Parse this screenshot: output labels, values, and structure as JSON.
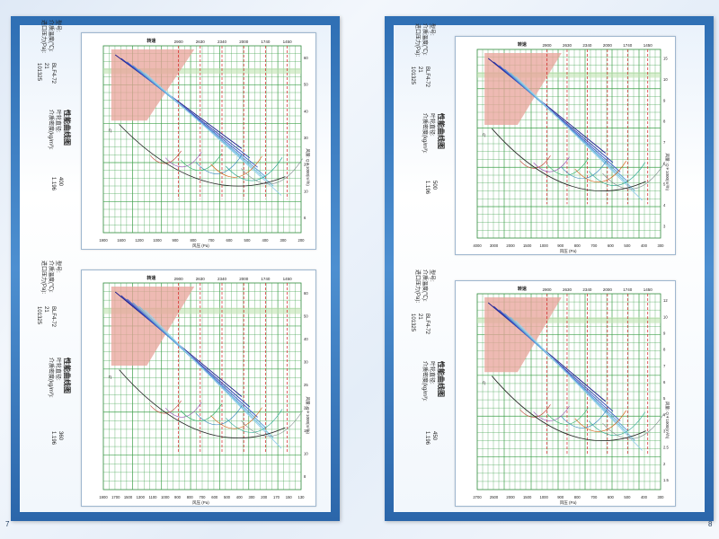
{
  "pages": [
    {
      "number": "7"
    },
    {
      "number": "8"
    }
  ],
  "labels": {
    "title": "性能曲线图",
    "model_label": "型号:",
    "impeller_label": "叶轮直径:",
    "temp_label": "介质温度(℃):",
    "density_label": "介质密度(kg/m³):",
    "pressure_label": "进口压力(Pa):",
    "speed_label": "转速",
    "speed_unit": "(r/min)",
    "y_axis_label": "风压",
    "y_axis_unit": "(Pa)",
    "x_axis_label": "风量: Q＊1000(m³/h)",
    "eta_label": "η"
  },
  "panels": [
    {
      "model": "BLF4-72",
      "impeller": "400",
      "temp": "21",
      "density": "1.196",
      "pressure": "101325",
      "speeds": [
        "2900",
        "2630",
        "2340",
        "2000",
        "1740",
        "1450"
      ],
      "pressure_ticks": [
        "1900",
        "1600",
        "1200",
        "1000",
        "900",
        "800",
        "700",
        "600",
        "500",
        "400",
        "300",
        "200"
      ],
      "flow_ticks": [
        "6",
        "10",
        "20",
        "30",
        "40",
        "50",
        "60"
      ]
    },
    {
      "model": "BLF4-72",
      "impeller": "360",
      "temp": "21",
      "density": "1.196",
      "pressure": "101325",
      "speeds": [
        "2900",
        "2630",
        "2340",
        "2000",
        "1740",
        "1450"
      ],
      "pressure_ticks": [
        "1900",
        "1700",
        "1500",
        "1300",
        "1100",
        "1000",
        "900",
        "800",
        "700",
        "600",
        "500",
        "400",
        "300",
        "200",
        "170",
        "150",
        "130"
      ],
      "flow_ticks": [
        "8",
        "10",
        "15",
        "20",
        "25",
        "30",
        "40",
        "50",
        "60"
      ]
    },
    {
      "model": "BLF4-72",
      "impeller": "500",
      "temp": "21",
      "density": "1.196",
      "pressure": "101325",
      "speeds": [
        "2900",
        "2630",
        "2340",
        "2000",
        "1740",
        "1450"
      ],
      "pressure_ticks": [
        "4000",
        "3000",
        "2000",
        "1500",
        "1000",
        "900",
        "800",
        "700",
        "600",
        "500",
        "400",
        "300"
      ],
      "flow_ticks": [
        "3",
        "4",
        "5",
        "6",
        "7",
        "8",
        "9",
        "10",
        "15"
      ]
    },
    {
      "model": "BLF4-72",
      "impeller": "450",
      "temp": "21",
      "density": "1.196",
      "pressure": "101325",
      "speeds": [
        "2900",
        "2630",
        "2340",
        "2000",
        "1740",
        "1450"
      ],
      "pressure_ticks": [
        "2700",
        "2500",
        "2000",
        "1500",
        "1000",
        "900",
        "800",
        "700",
        "600",
        "500",
        "400",
        "300"
      ],
      "flow_ticks": [
        "1.5",
        "2",
        "2.5",
        "3",
        "4",
        "5",
        "6",
        "7",
        "8",
        "9",
        "10",
        "12"
      ]
    }
  ]
}
